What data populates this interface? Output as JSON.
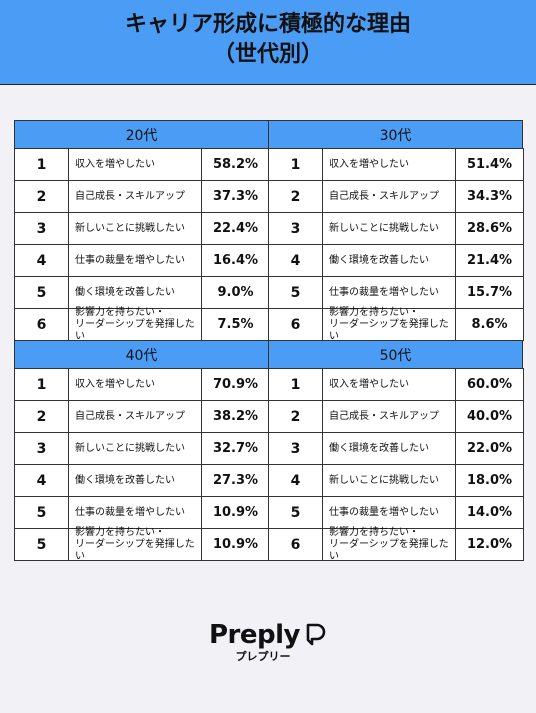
{
  "header": {
    "title": "キャリア形成に積極的な理由",
    "subtitle": "（世代別）"
  },
  "tables": [
    {
      "group": "20代",
      "rows": [
        [
          "1",
          "収入を増やしたい",
          "58.2%"
        ],
        [
          "2",
          "自己成長・スキルアップ",
          "37.3%"
        ],
        [
          "3",
          "新しいことに挑戦したい",
          "22.4%"
        ],
        [
          "4",
          "仕事の裁量を増やしたい",
          "16.4%"
        ],
        [
          "5",
          "働く環境を改善したい",
          "9.0%"
        ],
        [
          "6",
          "影響力を持ちたい・\nリーダーシップを発揮したい",
          "7.5%"
        ]
      ]
    },
    {
      "group": "30代",
      "rows": [
        [
          "1",
          "収入を増やしたい",
          "51.4%"
        ],
        [
          "2",
          "自己成長・スキルアップ",
          "34.3%"
        ],
        [
          "3",
          "新しいことに挑戦したい",
          "28.6%"
        ],
        [
          "4",
          "働く環境を改善したい",
          "21.4%"
        ],
        [
          "5",
          "仕事の裁量を増やしたい",
          "15.7%"
        ],
        [
          "6",
          "影響力を持ちたい・\nリーダーシップを発揮したい",
          "8.6%"
        ]
      ]
    },
    {
      "group": "40代",
      "rows": [
        [
          "1",
          "収入を増やしたい",
          "70.9%"
        ],
        [
          "2",
          "自己成長・スキルアップ",
          "38.2%"
        ],
        [
          "3",
          "新しいことに挑戦したい",
          "32.7%"
        ],
        [
          "4",
          "働く環境を改善したい",
          "27.3%"
        ],
        [
          "5",
          "仕事の裁量を増やしたい",
          "10.9%"
        ],
        [
          "5",
          "影響力を持ちたい・\nリーダーシップを発揮したい",
          "10.9%"
        ]
      ]
    },
    {
      "group": "50代",
      "rows": [
        [
          "1",
          "収入を増やしたい",
          "60.0%"
        ],
        [
          "2",
          "自己成長・スキルアップ",
          "40.0%"
        ],
        [
          "3",
          "働く環境を改善したい",
          "22.0%"
        ],
        [
          "4",
          "新しいことに挑戦したい",
          "18.0%"
        ],
        [
          "5",
          "仕事の裁量を増やしたい",
          "14.0%"
        ],
        [
          "6",
          "影響力を持ちたい・\nリーダーシップを発揮したい",
          "12.0%"
        ]
      ]
    }
  ],
  "brand": {
    "name": "Preply",
    "kana": "プレプリー"
  }
}
